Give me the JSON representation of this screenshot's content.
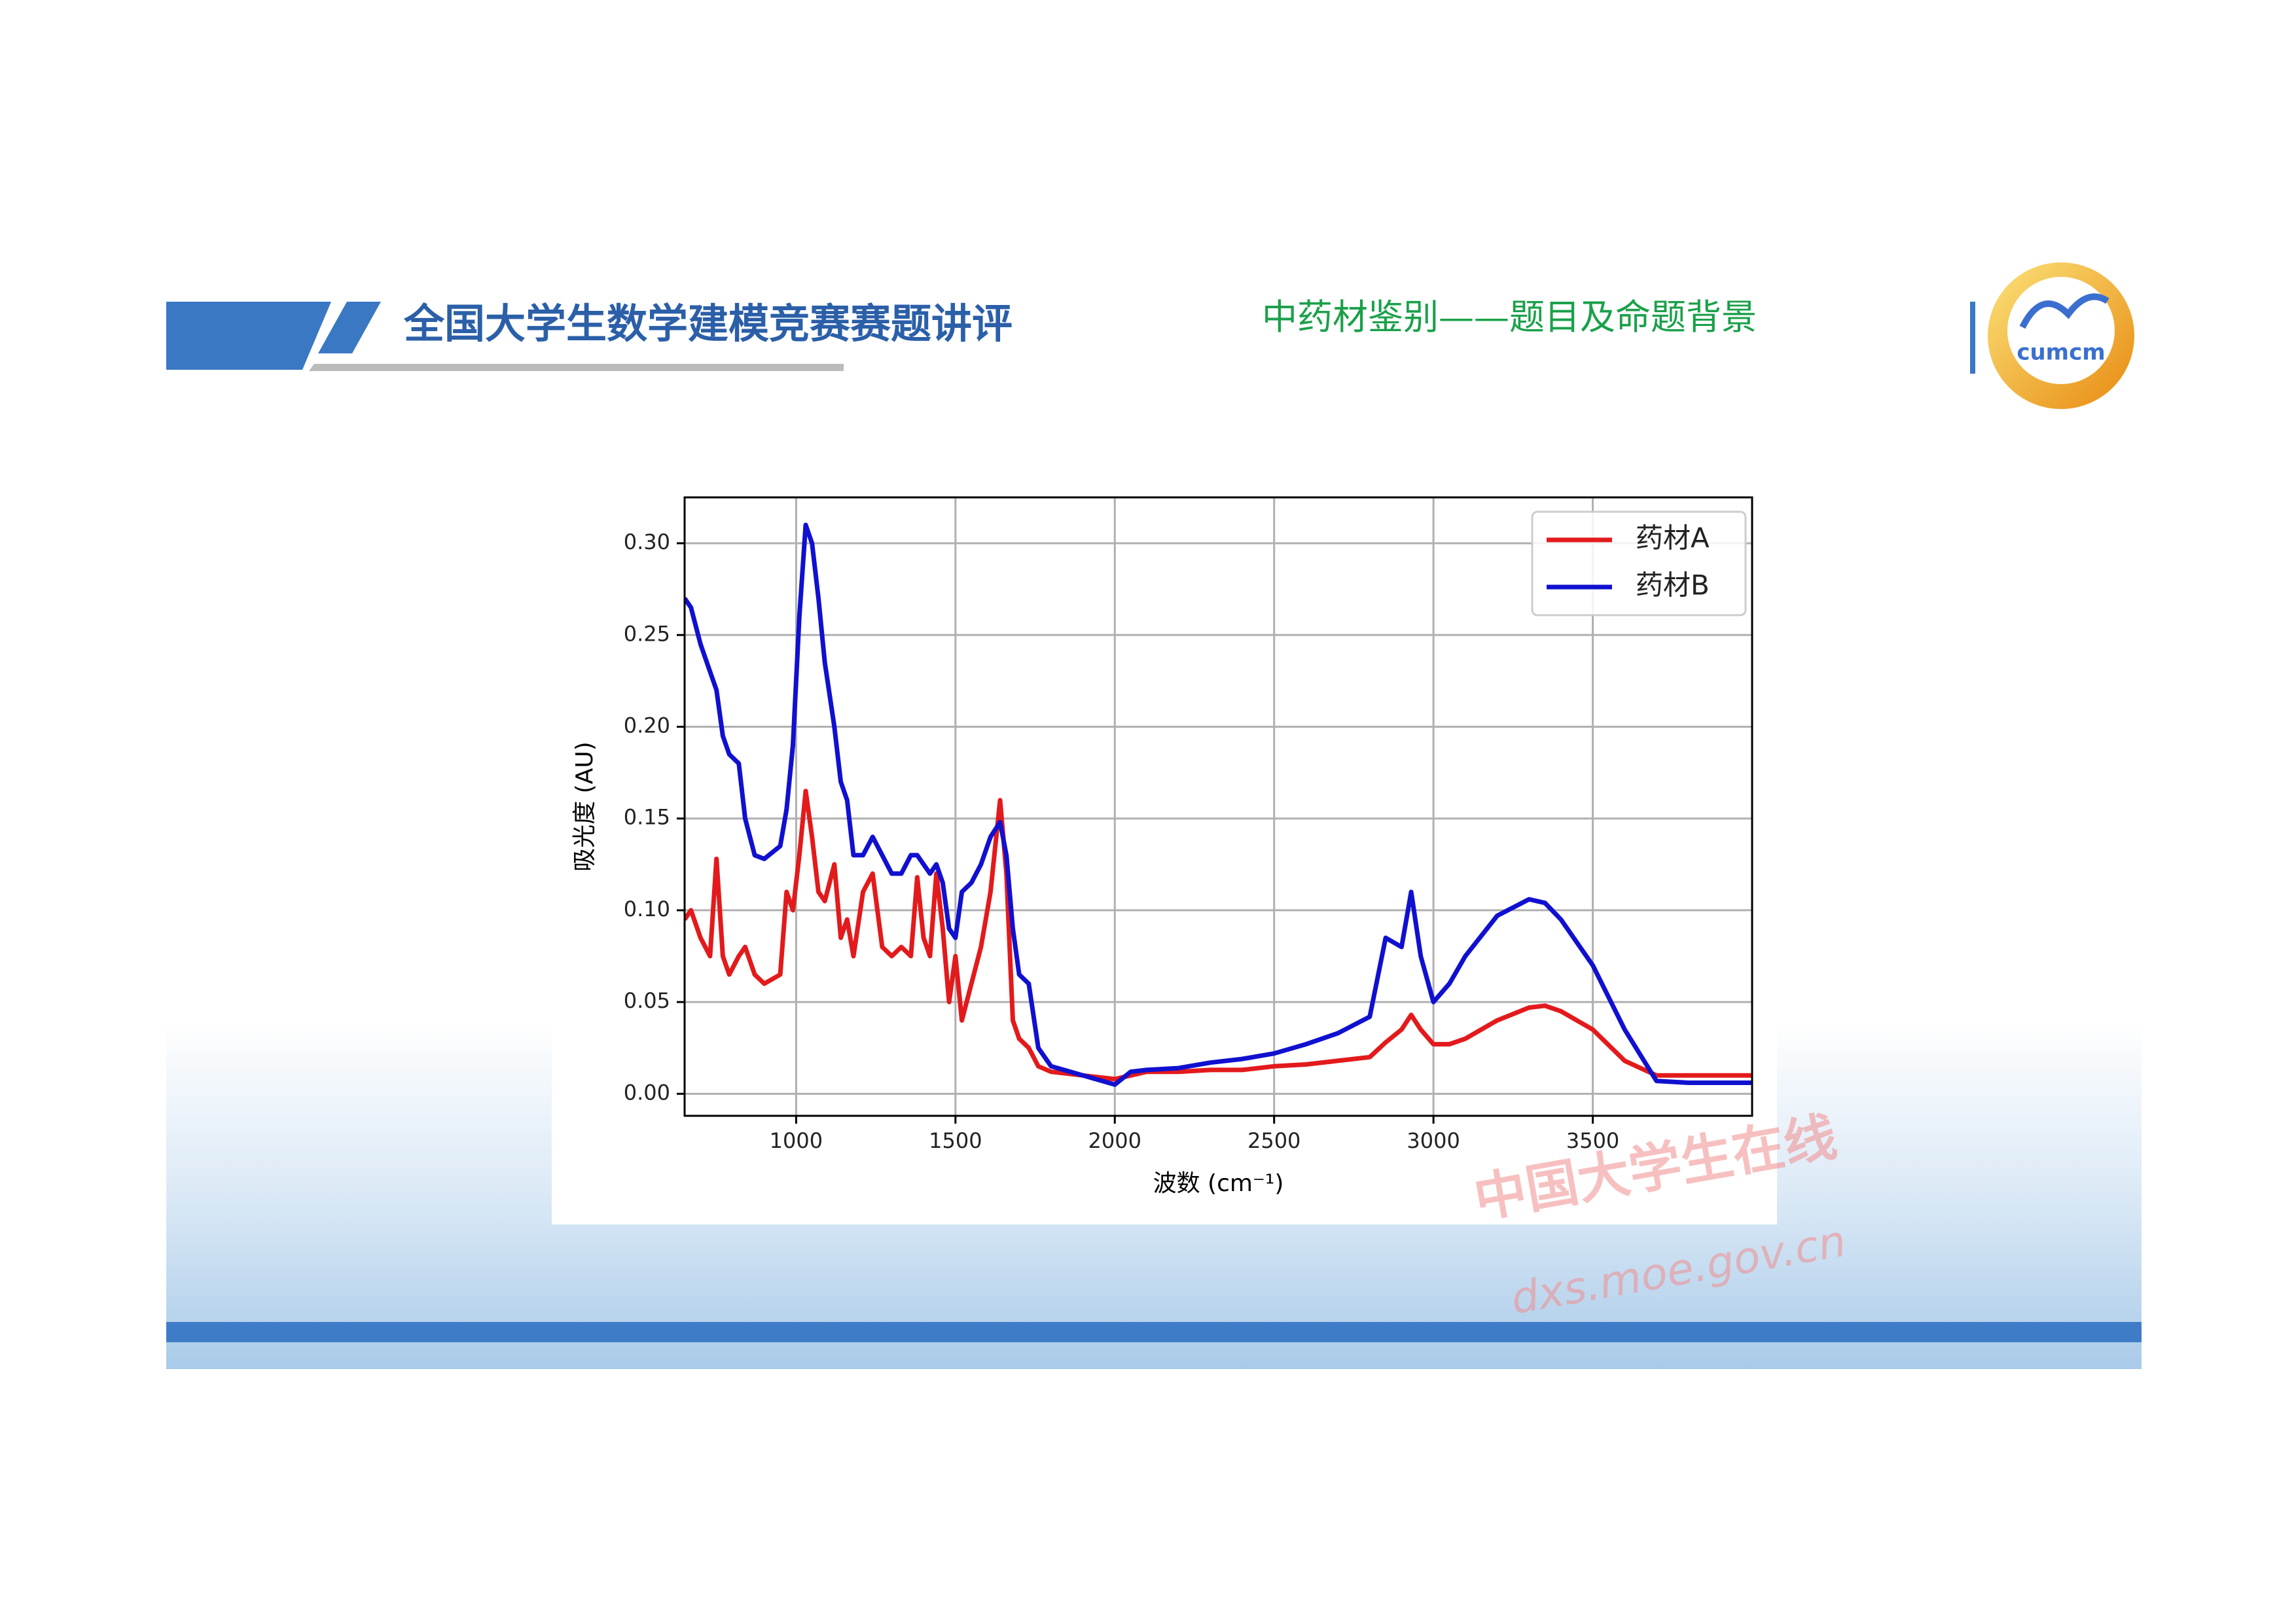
{
  "header": {
    "title": "全国大学生数学建模竞赛赛题讲评",
    "subtitle": "中药材鉴别——题目及命题背景",
    "logo": "cumcm",
    "watermark": "中国大学生在线",
    "watermark_url": "dxs.moe.gov.cn"
  },
  "chart_data": {
    "type": "line",
    "xlabel": "波数 (cm⁻¹)",
    "ylabel": "吸光度 (AU)",
    "x": [
      650,
      670,
      700,
      730,
      750,
      770,
      790,
      820,
      840,
      870,
      900,
      950,
      970,
      990,
      1010,
      1030,
      1050,
      1070,
      1090,
      1120,
      1140,
      1160,
      1180,
      1210,
      1240,
      1270,
      1300,
      1330,
      1360,
      1380,
      1400,
      1420,
      1440,
      1460,
      1480,
      1500,
      1520,
      1550,
      1580,
      1610,
      1640,
      1660,
      1680,
      1700,
      1730,
      1760,
      1800,
      1900,
      2000,
      2050,
      2100,
      2200,
      2300,
      2400,
      2500,
      2600,
      2700,
      2800,
      2850,
      2900,
      2930,
      2960,
      3000,
      3050,
      3100,
      3200,
      3300,
      3350,
      3400,
      3500,
      3600,
      3700,
      3800,
      4000
    ],
    "series": [
      {
        "name": "药材A",
        "color": "#e31a1c",
        "values": [
          0.095,
          0.1,
          0.085,
          0.075,
          0.128,
          0.075,
          0.065,
          0.075,
          0.08,
          0.065,
          0.06,
          0.065,
          0.11,
          0.1,
          0.13,
          0.165,
          0.14,
          0.11,
          0.105,
          0.125,
          0.085,
          0.095,
          0.075,
          0.11,
          0.12,
          0.08,
          0.075,
          0.08,
          0.075,
          0.118,
          0.085,
          0.075,
          0.12,
          0.09,
          0.05,
          0.075,
          0.04,
          0.06,
          0.08,
          0.11,
          0.16,
          0.12,
          0.04,
          0.03,
          0.025,
          0.015,
          0.012,
          0.01,
          0.008,
          0.01,
          0.012,
          0.012,
          0.013,
          0.013,
          0.015,
          0.016,
          0.018,
          0.02,
          0.028,
          0.035,
          0.043,
          0.035,
          0.027,
          0.027,
          0.03,
          0.04,
          0.047,
          0.048,
          0.045,
          0.035,
          0.018,
          0.01,
          0.01,
          0.01
        ]
      },
      {
        "name": "药材B",
        "color": "#1010d0",
        "values": [
          0.27,
          0.265,
          0.245,
          0.23,
          0.22,
          0.195,
          0.185,
          0.18,
          0.15,
          0.13,
          0.128,
          0.135,
          0.155,
          0.19,
          0.26,
          0.31,
          0.3,
          0.27,
          0.235,
          0.2,
          0.17,
          0.16,
          0.13,
          0.13,
          0.14,
          0.13,
          0.12,
          0.12,
          0.13,
          0.13,
          0.125,
          0.12,
          0.125,
          0.115,
          0.09,
          0.085,
          0.11,
          0.115,
          0.125,
          0.14,
          0.148,
          0.13,
          0.09,
          0.065,
          0.06,
          0.025,
          0.015,
          0.01,
          0.005,
          0.012,
          0.013,
          0.014,
          0.017,
          0.019,
          0.022,
          0.027,
          0.033,
          0.042,
          0.085,
          0.08,
          0.11,
          0.075,
          0.05,
          0.06,
          0.075,
          0.097,
          0.106,
          0.104,
          0.095,
          0.07,
          0.035,
          0.007,
          0.006,
          0.006
        ]
      }
    ],
    "xlim": [
      650,
      4000
    ],
    "xticks": [
      1000,
      1500,
      2000,
      2500,
      3000,
      3500
    ],
    "ylim": [
      -0.012,
      0.325
    ],
    "yticks": [
      {
        "value": 0,
        "label": "0.00"
      },
      0.05,
      {
        "value": 0.1,
        "label": "0.10"
      },
      0.15,
      {
        "value": 0.2,
        "label": "0.20"
      },
      0.25,
      {
        "value": 0.3,
        "label": "0.30"
      }
    ],
    "grid": true,
    "legend": "upper right"
  }
}
